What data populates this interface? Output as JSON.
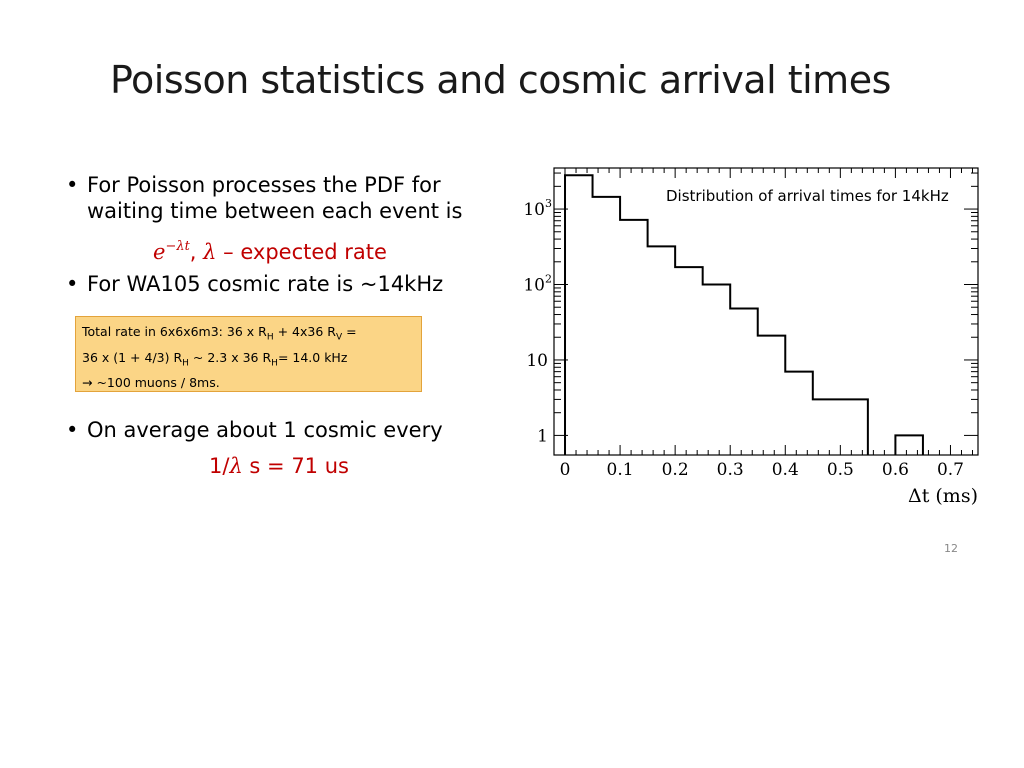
{
  "slide": {
    "title": "Poisson statistics and cosmic arrival times",
    "bullets": [
      {
        "lines": [
          "For Poisson processes the PDF for",
          "waiting time between each event is"
        ]
      },
      {
        "lines": [
          "For WA105 cosmic rate is ~14kHz"
        ]
      },
      {
        "lines": [
          "On average about 1 cosmic every"
        ]
      }
    ],
    "pdf_formula": {
      "base": "e",
      "exponent": "−λt",
      "separator": ",",
      "symbol": "λ",
      "description": "– expected rate"
    },
    "mean_formula": {
      "prefix": "1/",
      "symbol": "λ",
      "suffix": " s = 71 us"
    },
    "note": {
      "line1": {
        "a": "Total rate in 6x6x6m3: 36 x R",
        "sub1": "H",
        "b": " + 4x36 R",
        "sub2": "V",
        "c": " ="
      },
      "line2": {
        "a": "36 x (1 + 4/3) R",
        "sub1": "H",
        "b": " ~ 2.3 x 36 R",
        "sub2": "H",
        "c": "= 14.0 kHz"
      },
      "line3": "→ ~100 muons / 8ms."
    },
    "page_number": "12",
    "accent_color": "#c00000",
    "note_background": "#fbd586"
  },
  "chart_data": {
    "type": "histogram",
    "title": "Distribution of arrival times for 14kHz",
    "xlabel": "Δt (ms)",
    "ylabel": "",
    "x_ticks": [
      "0",
      "0.1",
      "0.2",
      "0.3",
      "0.4",
      "0.5",
      "0.6",
      "0.7"
    ],
    "y_ticks": [
      {
        "base": "10",
        "exp": "3",
        "value": 1000
      },
      {
        "base": "10",
        "exp": "2",
        "value": 100
      },
      {
        "base": "10",
        "exp": "",
        "value": 10
      },
      {
        "base": "1",
        "exp": "",
        "value": 1
      }
    ],
    "y_scale": "log",
    "xlim": [
      -0.02,
      0.75
    ],
    "ylim": [
      0.55,
      3500
    ],
    "bin_edges": [
      0,
      0.05,
      0.1,
      0.15,
      0.2,
      0.25,
      0.3,
      0.35,
      0.4,
      0.45,
      0.5,
      0.55,
      0.6,
      0.65,
      0.7
    ],
    "counts": [
      2800,
      1450,
      720,
      320,
      170,
      100,
      48,
      21,
      7,
      3,
      3,
      0,
      1,
      0
    ]
  }
}
